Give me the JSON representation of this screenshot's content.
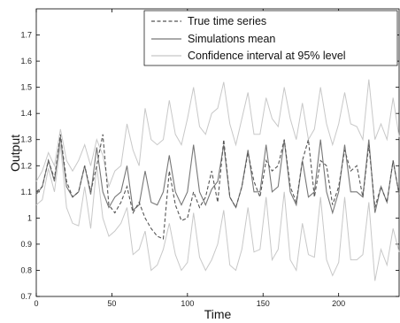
{
  "chart_data": {
    "type": "line",
    "title": "",
    "xlabel": "Time",
    "ylabel": "Output",
    "xlim": [
      0,
      240
    ],
    "ylim": [
      0.7,
      1.8
    ],
    "xticks": [
      0,
      50,
      100,
      150,
      200
    ],
    "yticks": [
      0.7,
      0.8,
      0.9,
      1.0,
      1.1,
      1.2,
      1.3,
      1.4,
      1.5,
      1.6,
      1.7
    ],
    "ytick_labels": [
      "0.7",
      "0.8",
      "0.9",
      "1",
      "1.1",
      "1.2",
      "1.3",
      "1.4",
      "1.5",
      "1.6",
      "1.7"
    ],
    "grid": false,
    "legend_position": "top-right",
    "x": [
      0,
      4,
      8,
      12,
      16,
      20,
      24,
      28,
      32,
      36,
      40,
      44,
      48,
      52,
      56,
      60,
      64,
      68,
      72,
      76,
      80,
      84,
      88,
      92,
      96,
      100,
      104,
      108,
      112,
      116,
      120,
      124,
      128,
      132,
      136,
      140,
      144,
      148,
      152,
      156,
      160,
      164,
      168,
      172,
      176,
      180,
      184,
      188,
      192,
      196,
      200,
      204,
      208,
      212,
      216,
      220,
      224,
      228,
      232,
      236,
      240
    ],
    "series": [
      {
        "name": "True time series",
        "style": "dashed",
        "color": "#555555",
        "values": [
          1.1,
          1.12,
          1.22,
          1.15,
          1.32,
          1.14,
          1.08,
          1.1,
          1.2,
          1.1,
          1.2,
          1.32,
          1.05,
          1.02,
          1.06,
          1.12,
          1.02,
          1.06,
          1.0,
          0.96,
          0.93,
          0.92,
          1.18,
          1.05,
          0.99,
          1.0,
          1.1,
          1.04,
          1.08,
          1.18,
          1.06,
          1.3,
          1.08,
          1.04,
          1.12,
          1.25,
          1.14,
          1.08,
          1.22,
          1.18,
          1.2,
          1.3,
          1.12,
          1.06,
          1.22,
          1.3,
          1.08,
          1.22,
          1.2,
          1.05,
          1.12,
          1.26,
          1.18,
          1.2,
          1.08,
          1.28,
          1.04,
          1.12,
          1.06,
          1.22,
          1.09
        ]
      },
      {
        "name": "Simulations mean",
        "style": "solid",
        "color": "#777777",
        "values": [
          1.09,
          1.12,
          1.22,
          1.14,
          1.31,
          1.12,
          1.08,
          1.1,
          1.2,
          1.09,
          1.27,
          1.1,
          1.04,
          1.08,
          1.1,
          1.2,
          1.03,
          1.05,
          1.18,
          1.06,
          1.05,
          1.1,
          1.24,
          1.1,
          1.05,
          1.1,
          1.28,
          1.1,
          1.05,
          1.11,
          1.14,
          1.28,
          1.08,
          1.04,
          1.12,
          1.26,
          1.1,
          1.1,
          1.28,
          1.1,
          1.12,
          1.3,
          1.1,
          1.05,
          1.22,
          1.08,
          1.1,
          1.3,
          1.1,
          1.02,
          1.1,
          1.28,
          1.1,
          1.1,
          1.08,
          1.3,
          1.02,
          1.12,
          1.06,
          1.22,
          1.09
        ]
      },
      {
        "name": "Confidence interval at 95% level",
        "style": "solid",
        "color": "#c8c8c8",
        "values_upper": [
          1.14,
          1.18,
          1.25,
          1.2,
          1.34,
          1.22,
          1.18,
          1.22,
          1.28,
          1.2,
          1.3,
          1.24,
          1.12,
          1.18,
          1.2,
          1.36,
          1.26,
          1.2,
          1.42,
          1.3,
          1.28,
          1.3,
          1.45,
          1.32,
          1.28,
          1.38,
          1.5,
          1.35,
          1.32,
          1.4,
          1.42,
          1.52,
          1.36,
          1.28,
          1.38,
          1.48,
          1.32,
          1.32,
          1.46,
          1.38,
          1.35,
          1.5,
          1.38,
          1.3,
          1.44,
          1.3,
          1.34,
          1.5,
          1.36,
          1.28,
          1.36,
          1.48,
          1.36,
          1.35,
          1.3,
          1.53,
          1.3,
          1.36,
          1.3,
          1.46,
          1.31
        ],
        "values_lower": [
          1.05,
          1.07,
          1.19,
          1.1,
          1.28,
          1.04,
          0.98,
          0.97,
          1.12,
          0.96,
          1.2,
          1.0,
          0.93,
          0.95,
          0.98,
          1.04,
          0.86,
          0.88,
          0.95,
          0.8,
          0.82,
          0.88,
          0.98,
          0.86,
          0.8,
          0.83,
          1.02,
          0.85,
          0.8,
          0.84,
          0.9,
          1.03,
          0.82,
          0.8,
          0.88,
          1.04,
          0.87,
          0.88,
          1.08,
          0.84,
          0.88,
          1.1,
          0.84,
          0.8,
          0.98,
          0.86,
          0.85,
          1.08,
          0.84,
          0.78,
          0.83,
          1.08,
          0.84,
          0.84,
          0.86,
          1.06,
          0.76,
          0.88,
          0.82,
          0.96,
          0.87
        ]
      }
    ]
  }
}
